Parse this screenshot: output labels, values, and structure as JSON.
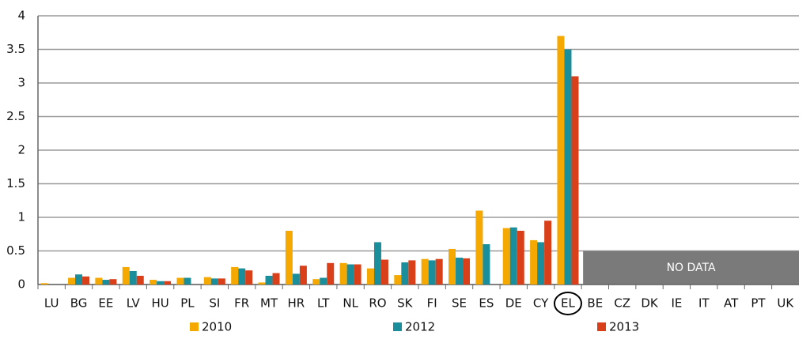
{
  "chart_data": {
    "type": "bar",
    "categories": [
      "LU",
      "BG",
      "EE",
      "LV",
      "HU",
      "PL",
      "SI",
      "FR",
      "MT",
      "HR",
      "LT",
      "NL",
      "RO",
      "SK",
      "FI",
      "SE",
      "ES",
      "DE",
      "CY",
      "EL",
      "BE",
      "CZ",
      "DK",
      "IE",
      "IT",
      "AT",
      "PT",
      "UK"
    ],
    "series": [
      {
        "name": "2010",
        "color": "#f5a800",
        "values": [
          0.02,
          0.1,
          0.1,
          0.26,
          0.07,
          0.1,
          0.11,
          0.26,
          0.03,
          0.8,
          0.08,
          0.32,
          0.24,
          0.14,
          0.38,
          0.53,
          1.1,
          0.84,
          0.66,
          3.7,
          null,
          null,
          null,
          null,
          null,
          null,
          null,
          null
        ]
      },
      {
        "name": "2012",
        "color": "#1a8e9a",
        "values": [
          0,
          0.15,
          0.07,
          0.2,
          0.05,
          0.1,
          0.09,
          0.24,
          0.13,
          0.16,
          0.1,
          0.3,
          0.63,
          0.33,
          0.36,
          0.4,
          0.6,
          0.85,
          0.63,
          3.5,
          null,
          null,
          null,
          null,
          null,
          null,
          null,
          null
        ]
      },
      {
        "name": "2013",
        "color": "#d9401a",
        "values": [
          0,
          0.12,
          0.08,
          0.13,
          0.05,
          null,
          0.09,
          0.21,
          0.17,
          0.28,
          0.32,
          0.3,
          0.37,
          0.36,
          0.38,
          0.39,
          null,
          0.8,
          0.95,
          3.1,
          null,
          null,
          null,
          null,
          null,
          null,
          null,
          null
        ]
      }
    ],
    "ylim": [
      0,
      4
    ],
    "yticks": [
      0,
      0.5,
      1,
      1.5,
      2,
      2.5,
      3,
      3.5,
      4
    ],
    "grid": true,
    "highlight": "EL",
    "no_data": {
      "label": "NO DATA",
      "value": 0.5,
      "color": "#7a7a7a"
    }
  }
}
